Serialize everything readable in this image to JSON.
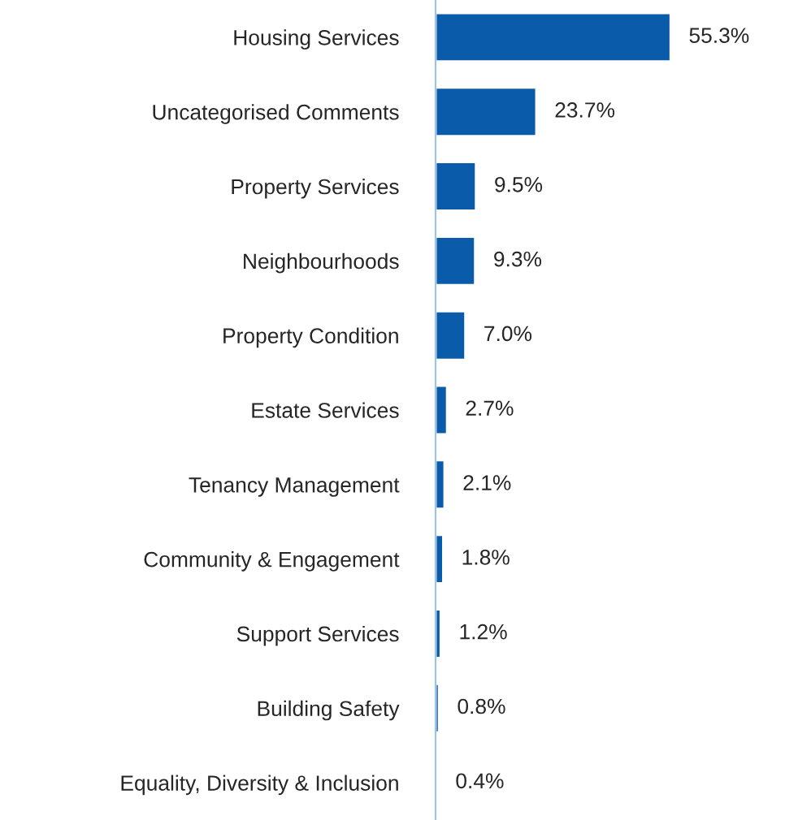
{
  "chart_data": {
    "type": "bar",
    "orientation": "horizontal",
    "categories": [
      "Housing Services",
      "Uncategorised Comments",
      "Property Services",
      "Neighbourhoods",
      "Property Condition",
      "Estate Services",
      "Tenancy Management",
      "Community & Engagement",
      "Support Services",
      "Building Safety",
      "Equality, Diversity & Inclusion"
    ],
    "values": [
      55.3,
      23.7,
      9.5,
      9.3,
      7.0,
      2.7,
      2.1,
      1.8,
      1.2,
      0.8,
      0.4
    ],
    "value_labels": [
      "55.3%",
      "23.7%",
      "9.5%",
      "9.3%",
      "7.0%",
      "2.7%",
      "2.1%",
      "1.8%",
      "1.2%",
      "0.8%",
      "0.4%"
    ],
    "color": "#0b5bab",
    "grid": false,
    "legend": false
  }
}
